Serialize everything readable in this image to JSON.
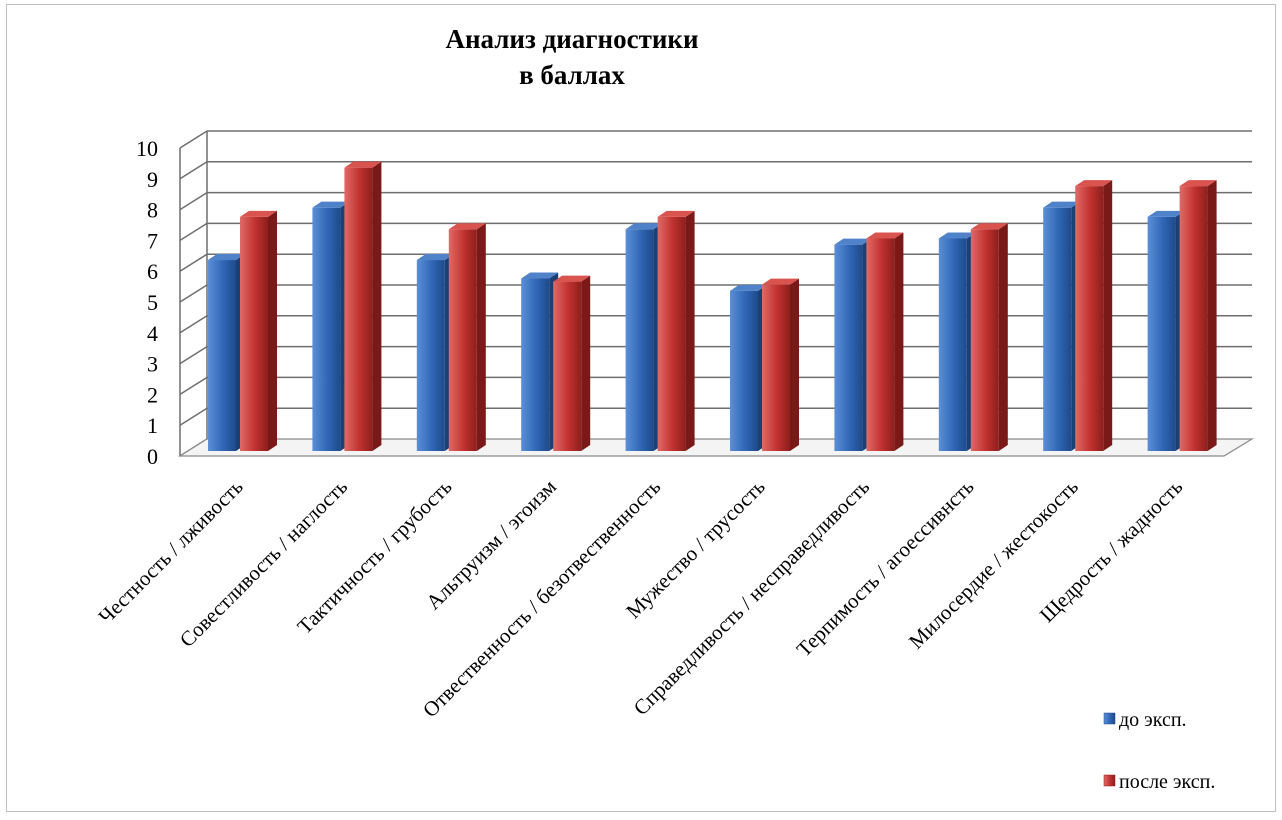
{
  "chart_data": {
    "type": "bar",
    "title": "Анализ диагностики\nв баллах",
    "title_lines": [
      "Анализ диагностики",
      "в баллах"
    ],
    "xlabel": "",
    "ylabel": "",
    "ylim": [
      0,
      10
    ],
    "yticks": [
      "0",
      "1",
      "2",
      "3",
      "4",
      "5",
      "6",
      "7",
      "8",
      "9",
      "10"
    ],
    "grid": true,
    "style": "3d-clustered-bars",
    "legend_position": "bottom-right",
    "categories": [
      "Честность / лживость",
      "Совестливость / наглость",
      "Тактичность / грубость",
      "Альтруизм / эгоизм",
      "Отвественность / безотвественность",
      "Мужество / трусость",
      "Справедливость / несправедливость",
      "Терпимость / агоессивнсть",
      "Милосердие / жестокость",
      "Щедрость / жадность"
    ],
    "series": [
      {
        "name": "до эксп.",
        "color": "#2f66b5",
        "values": [
          6.2,
          7.9,
          6.2,
          5.6,
          7.2,
          5.2,
          6.7,
          6.9,
          7.9,
          7.6
        ]
      },
      {
        "name": "после эксп.",
        "color": "#c0312f",
        "values": [
          7.6,
          9.2,
          7.2,
          5.5,
          7.6,
          5.4,
          6.9,
          7.2,
          8.6,
          8.6
        ]
      }
    ]
  }
}
